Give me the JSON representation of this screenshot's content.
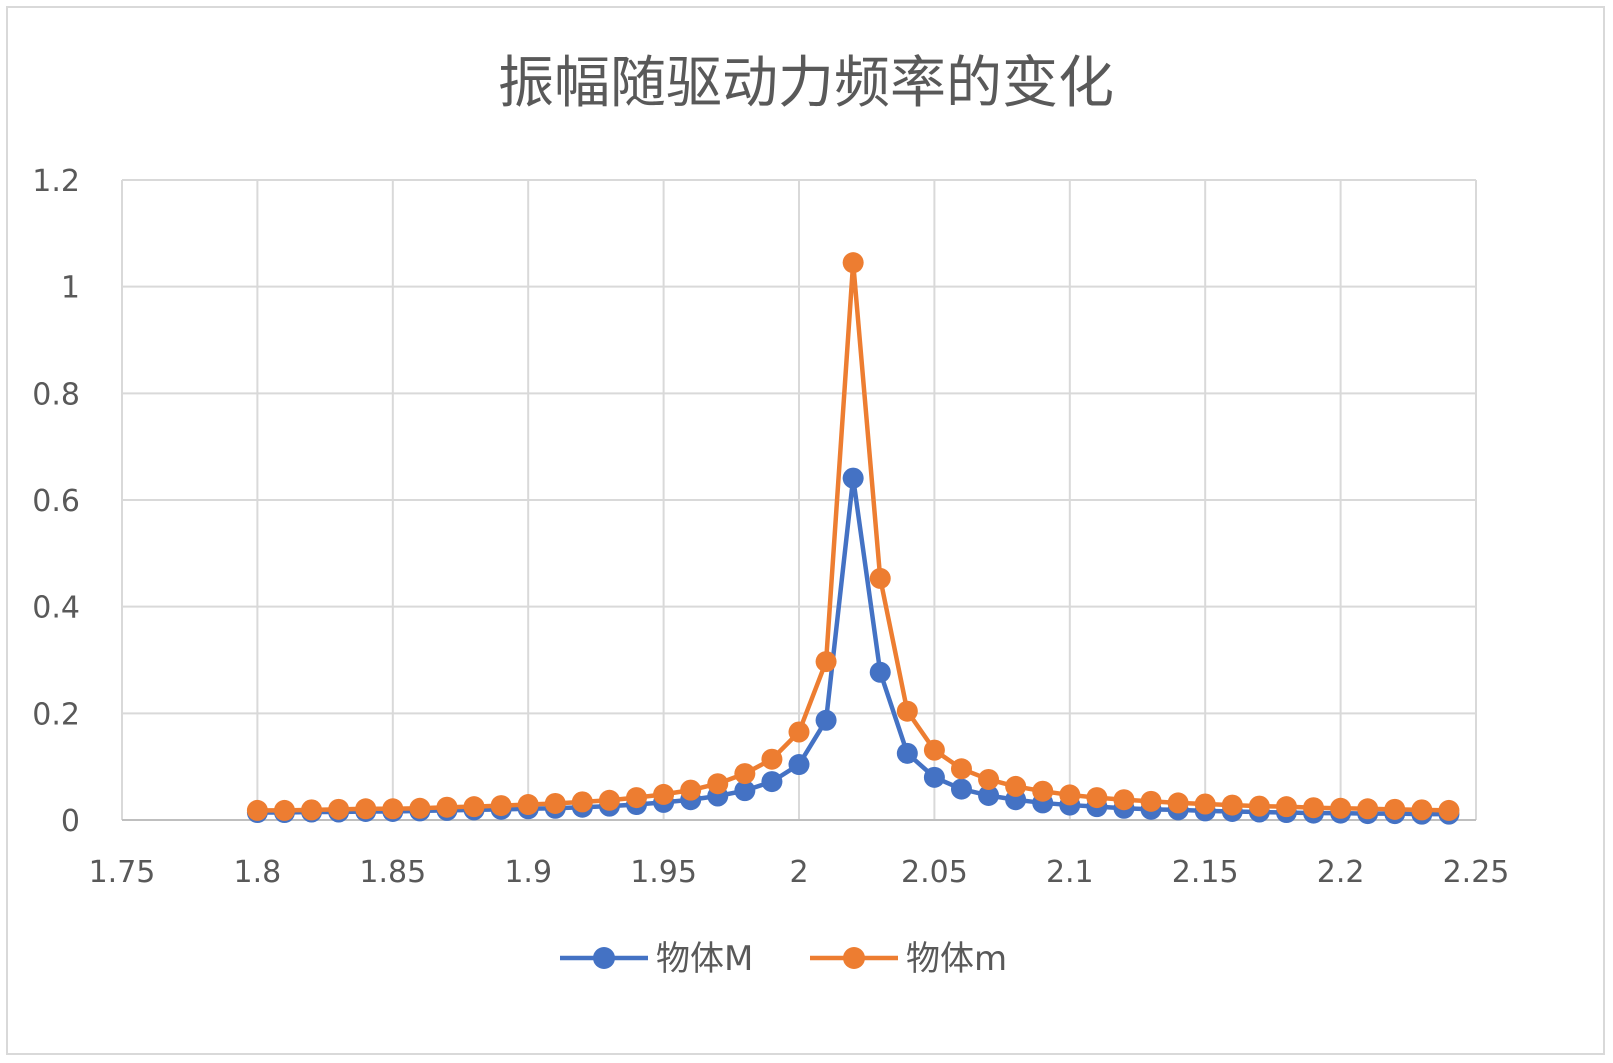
{
  "chart_data": {
    "type": "scatter",
    "title": "振幅随驱动力频率的变化",
    "xlabel": "",
    "ylabel": "",
    "xlim": [
      1.75,
      2.25
    ],
    "ylim": [
      0,
      1.2
    ],
    "xticks": [
      "1.75",
      "1.8",
      "1.85",
      "1.9",
      "1.95",
      "2",
      "2.05",
      "2.1",
      "2.15",
      "2.2",
      "2.25"
    ],
    "yticks": [
      "0",
      "0.2",
      "0.4",
      "0.6",
      "0.8",
      "1",
      "1.2"
    ],
    "grid": true,
    "legend_position": "bottom",
    "x": [
      1.8,
      1.81,
      1.82,
      1.83,
      1.84,
      1.85,
      1.86,
      1.87,
      1.88,
      1.89,
      1.9,
      1.91,
      1.92,
      1.93,
      1.94,
      1.95,
      1.96,
      1.97,
      1.98,
      1.99,
      2.0,
      2.01,
      2.02,
      2.03,
      2.04,
      2.05,
      2.06,
      2.07,
      2.08,
      2.09,
      2.1,
      2.11,
      2.12,
      2.13,
      2.14,
      2.15,
      2.16,
      2.17,
      2.18,
      2.19,
      2.2,
      2.21,
      2.22,
      2.23,
      2.24
    ],
    "series": [
      {
        "name": "物体M",
        "color": "#4472C4",
        "values": [
          0.014,
          0.014,
          0.015,
          0.015,
          0.016,
          0.016,
          0.017,
          0.018,
          0.019,
          0.02,
          0.021,
          0.022,
          0.024,
          0.026,
          0.029,
          0.033,
          0.038,
          0.045,
          0.055,
          0.072,
          0.104,
          0.187,
          0.641,
          0.277,
          0.125,
          0.08,
          0.058,
          0.046,
          0.038,
          0.032,
          0.028,
          0.025,
          0.022,
          0.02,
          0.019,
          0.017,
          0.016,
          0.015,
          0.014,
          0.013,
          0.013,
          0.012,
          0.012,
          0.011,
          0.011
        ]
      },
      {
        "name": "物体m",
        "color": "#ED7D31",
        "values": [
          0.018,
          0.018,
          0.019,
          0.02,
          0.021,
          0.021,
          0.022,
          0.024,
          0.025,
          0.027,
          0.029,
          0.031,
          0.034,
          0.037,
          0.042,
          0.048,
          0.056,
          0.068,
          0.087,
          0.114,
          0.165,
          0.297,
          1.045,
          0.453,
          0.204,
          0.131,
          0.096,
          0.076,
          0.063,
          0.054,
          0.047,
          0.042,
          0.038,
          0.035,
          0.032,
          0.03,
          0.028,
          0.026,
          0.025,
          0.023,
          0.022,
          0.021,
          0.02,
          0.019,
          0.018
        ]
      }
    ]
  }
}
